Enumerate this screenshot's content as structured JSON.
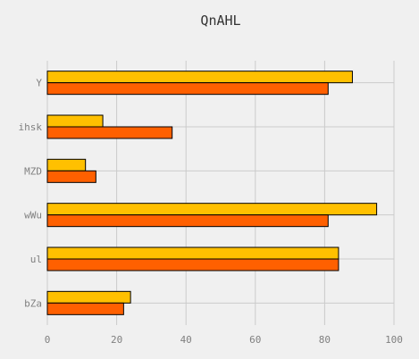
{
  "chart_data": {
    "type": "bar",
    "orientation": "horizontal",
    "title": "QnAHL",
    "categories": [
      "Y",
      "ihsk",
      "MZD",
      "wWu",
      "ul",
      "bZa"
    ],
    "series": [
      {
        "color": "#ffc000",
        "values": [
          88,
          16,
          11,
          95,
          84,
          24
        ]
      },
      {
        "color": "#ff6000",
        "values": [
          81,
          36,
          14,
          81,
          84,
          22
        ]
      }
    ],
    "xlim": [
      0,
      100
    ],
    "xticks": [
      "0",
      "20",
      "40",
      "60",
      "80",
      "100"
    ],
    "grid": true,
    "legend": "none",
    "background": "#f0f0f0"
  }
}
